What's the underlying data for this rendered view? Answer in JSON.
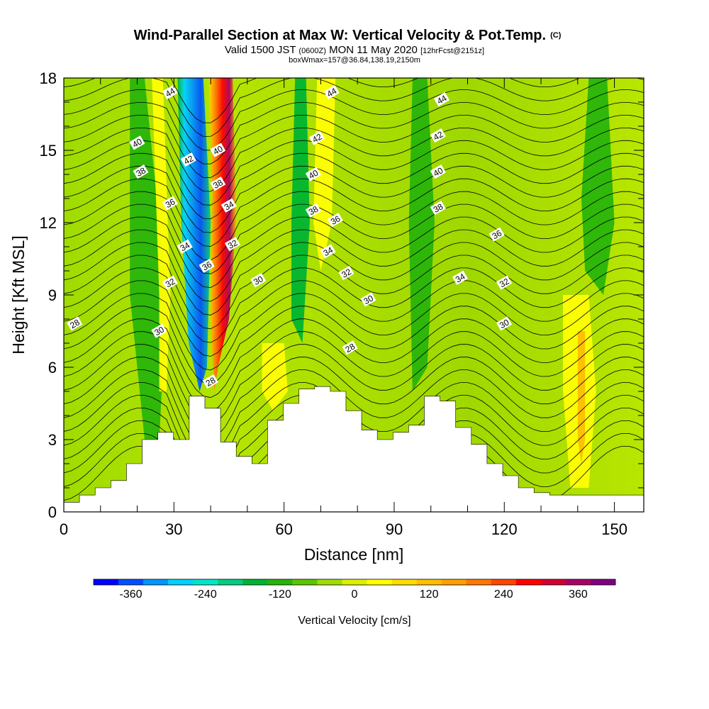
{
  "chart_data": {
    "type": "heatmap",
    "title": "Wind-Parallel Section at Max W: Vertical Velocity & Pot.Temp.",
    "title_mark": "(C)",
    "subtitle_main": "Valid 1500 JST",
    "subtitle_utc": "(0600Z)",
    "subtitle_date": "MON 11 May 2020",
    "subtitle_fcst": "[12hrFcst@2151z]",
    "subtitle2": "boxWmax=157@36.84,138.19,2150m",
    "xlabel": "Distance [nm]",
    "ylabel": "Height [Kft MSL]",
    "xlim": [
      0,
      158
    ],
    "ylim": [
      0,
      18
    ],
    "x_ticks": [
      0,
      30,
      60,
      90,
      120,
      150
    ],
    "x_tick_labels": [
      "0",
      "30",
      "60",
      "90",
      "120",
      "150"
    ],
    "y_ticks": [
      0,
      3,
      6,
      9,
      12,
      15,
      18
    ],
    "y_tick_labels": [
      "0",
      "3",
      "6",
      "9",
      "12",
      "15",
      "18"
    ],
    "colorbar": {
      "label": "Vertical Velocity [cm/s]",
      "tick_values": [
        -360,
        -240,
        -120,
        0,
        120,
        240,
        360
      ],
      "tick_labels": [
        "-360",
        "-240",
        "-120",
        "0",
        "120",
        "240",
        "360"
      ],
      "colors": [
        "#0000ff",
        "#0050ff",
        "#0096ff",
        "#00d2ff",
        "#00e6c8",
        "#00cd82",
        "#00b432",
        "#28b40a",
        "#5ac800",
        "#a0dc00",
        "#dcf000",
        "#ffff00",
        "#ffdc00",
        "#ffbe00",
        "#ffa000",
        "#ff7800",
        "#ff4600",
        "#ff0000",
        "#d20032",
        "#aa0064",
        "#800080"
      ]
    },
    "terrain_heights_kft": [
      0.4,
      0.7,
      1.0,
      1.3,
      2.0,
      3.0,
      3.3,
      3.0,
      4.8,
      4.3,
      2.9,
      2.3,
      2.0,
      3.8,
      4.5,
      5.1,
      5.2,
      5.0,
      4.2,
      3.4,
      3.0,
      3.3,
      3.6,
      4.8,
      4.6,
      3.5,
      2.8,
      2.0,
      1.5,
      1.0,
      0.8,
      0.7,
      0.7,
      0.7,
      0.7,
      0.7,
      0.7,
      0.3
    ],
    "updraft_peak": {
      "distance_nm": 44,
      "velocity_cms": 360
    },
    "downdraft_peak": {
      "distance_nm": 35,
      "velocity_cms": -360
    },
    "contour_labels": [
      {
        "text": "44",
        "x": 29,
        "y": 17.4
      },
      {
        "text": "40",
        "x": 20,
        "y": 15.3
      },
      {
        "text": "38",
        "x": 21,
        "y": 14.1
      },
      {
        "text": "36",
        "x": 29,
        "y": 12.8
      },
      {
        "text": "32",
        "x": 29,
        "y": 9.5
      },
      {
        "text": "30",
        "x": 26,
        "y": 7.5
      },
      {
        "text": "28",
        "x": 3,
        "y": 7.8
      },
      {
        "text": "42",
        "x": 34,
        "y": 14.6
      },
      {
        "text": "34",
        "x": 33,
        "y": 11.0
      },
      {
        "text": "40",
        "x": 42,
        "y": 15.0
      },
      {
        "text": "38",
        "x": 42,
        "y": 13.6
      },
      {
        "text": "34",
        "x": 45,
        "y": 12.7
      },
      {
        "text": "32",
        "x": 46,
        "y": 11.1
      },
      {
        "text": "36",
        "x": 39,
        "y": 10.2
      },
      {
        "text": "28",
        "x": 40,
        "y": 5.4
      },
      {
        "text": "30",
        "x": 53,
        "y": 9.6
      },
      {
        "text": "44",
        "x": 73,
        "y": 17.4
      },
      {
        "text": "42",
        "x": 69,
        "y": 15.5
      },
      {
        "text": "40",
        "x": 68,
        "y": 14.0
      },
      {
        "text": "38",
        "x": 68,
        "y": 12.5
      },
      {
        "text": "36",
        "x": 74,
        "y": 12.1
      },
      {
        "text": "34",
        "x": 72,
        "y": 10.8
      },
      {
        "text": "32",
        "x": 77,
        "y": 9.9
      },
      {
        "text": "30",
        "x": 83,
        "y": 8.8
      },
      {
        "text": "28",
        "x": 78,
        "y": 6.8
      },
      {
        "text": "44",
        "x": 103,
        "y": 17.1
      },
      {
        "text": "42",
        "x": 102,
        "y": 15.6
      },
      {
        "text": "40",
        "x": 102,
        "y": 14.1
      },
      {
        "text": "38",
        "x": 102,
        "y": 12.6
      },
      {
        "text": "36",
        "x": 118,
        "y": 11.5
      },
      {
        "text": "34",
        "x": 108,
        "y": 9.7
      },
      {
        "text": "32",
        "x": 120,
        "y": 9.5
      },
      {
        "text": "30",
        "x": 120,
        "y": 7.8
      }
    ]
  }
}
